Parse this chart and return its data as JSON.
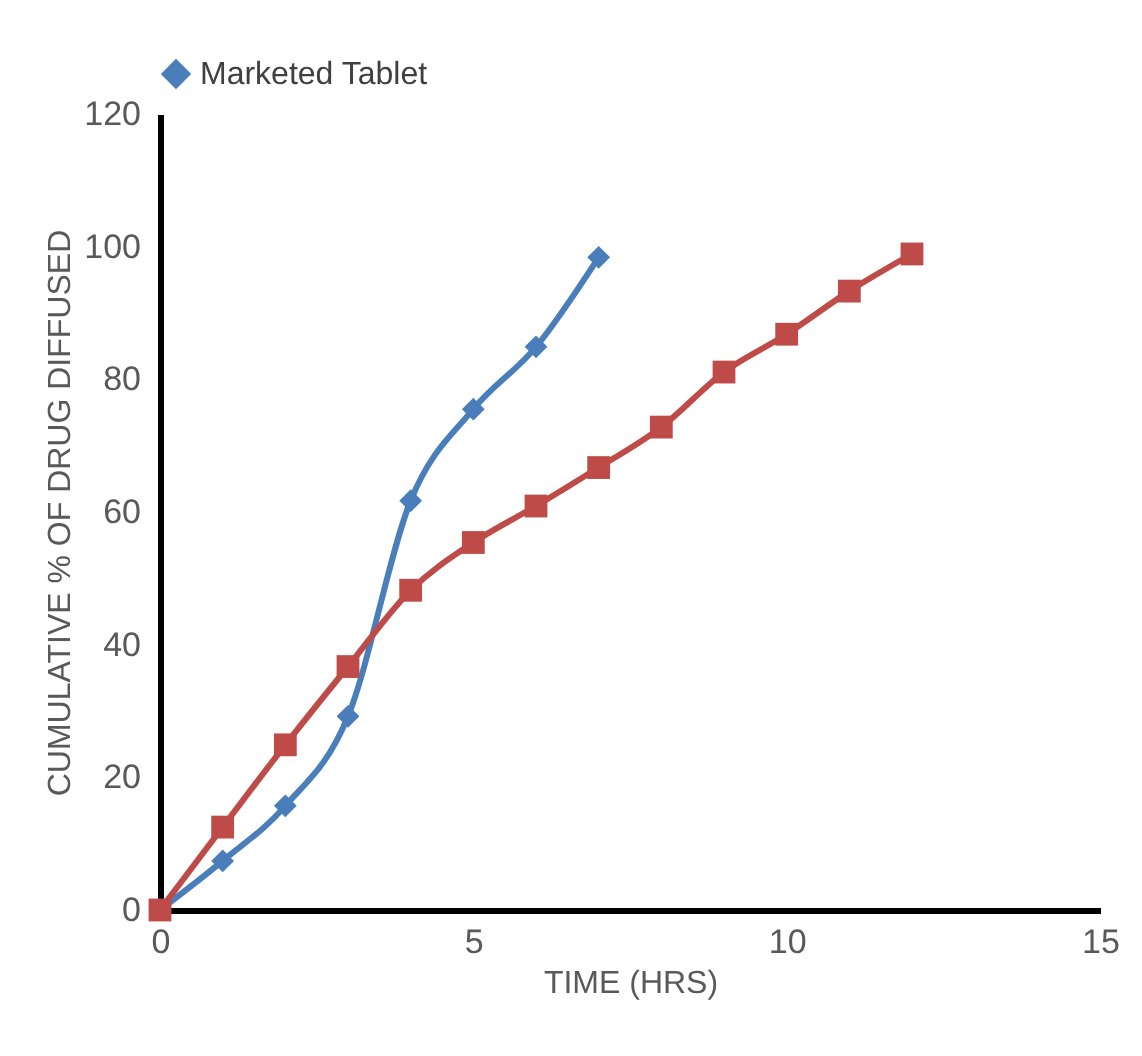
{
  "chart_data": {
    "type": "line",
    "xlabel": "TIME (HRS)",
    "ylabel": "CUMULATIVE % OF DRUG DIFFUSED",
    "xlim": [
      0,
      15
    ],
    "xticks": [
      0,
      5,
      10,
      15
    ],
    "ylim": [
      0,
      120
    ],
    "yticks": [
      0,
      20,
      40,
      60,
      80,
      100,
      120
    ],
    "grid": false,
    "legend": "top",
    "series": [
      {
        "name": "Marketed Tablet",
        "color": "#4a7ebb",
        "marker": "diamond",
        "x": [
          0,
          1,
          2,
          3,
          4,
          5,
          6,
          7
        ],
        "values": [
          0,
          7.4,
          15.7,
          29.2,
          61.7,
          75.5,
          84.9,
          98.4
        ]
      },
      {
        "color": "#be4b48",
        "marker": "square",
        "x": [
          0,
          1,
          2,
          3,
          4,
          5,
          6,
          7,
          8,
          9,
          10,
          11,
          12
        ],
        "values": [
          0,
          12.5,
          24.9,
          36.7,
          48.2,
          55.4,
          60.9,
          66.7,
          72.8,
          81.1,
          86.8,
          93.3,
          98.9
        ]
      }
    ]
  }
}
